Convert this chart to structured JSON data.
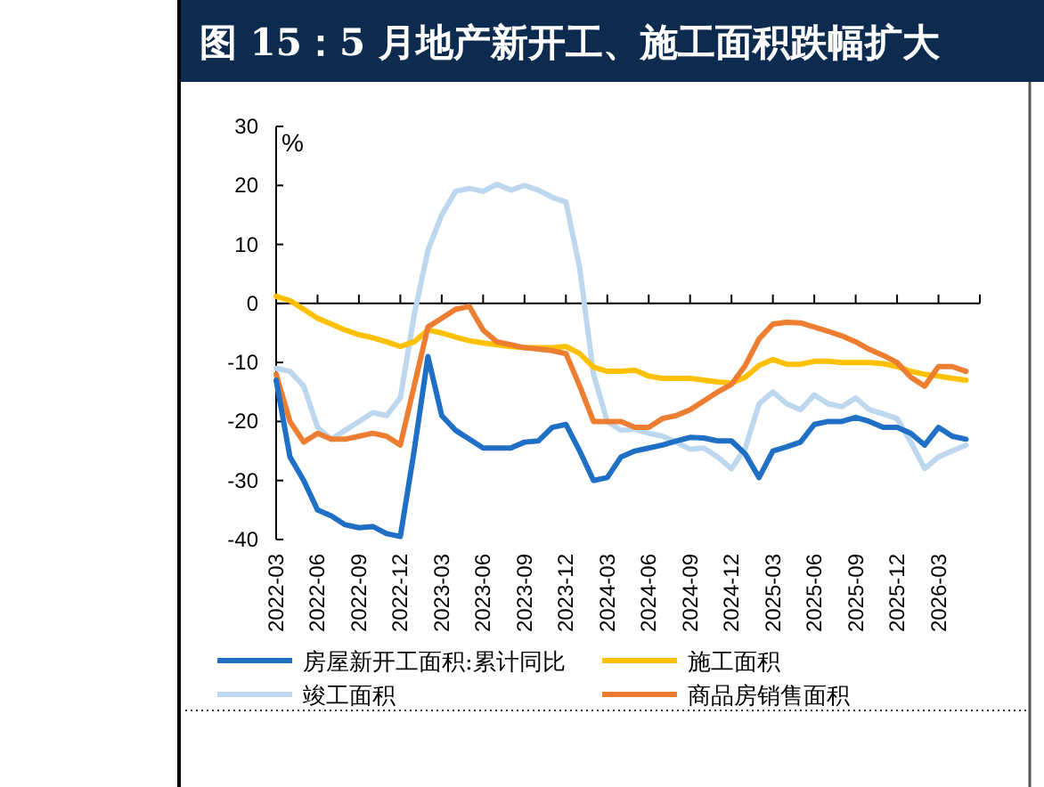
{
  "chart_data": {
    "type": "line",
    "title": "图 15：5 月地产新开工、施工面积跌幅扩大",
    "ylabel": "%",
    "x": [
      "2022-03",
      "2022-04",
      "2022-05",
      "2022-06",
      "2022-07",
      "2022-08",
      "2022-09",
      "2022-10",
      "2022-11",
      "2022-12",
      "2023-01",
      "2023-02",
      "2023-03",
      "2023-04",
      "2023-05",
      "2023-06",
      "2023-07",
      "2023-08",
      "2023-09",
      "2023-10",
      "2023-11",
      "2023-12",
      "2024-01",
      "2024-02",
      "2024-03",
      "2024-04",
      "2024-05",
      "2024-06",
      "2024-07",
      "2024-08",
      "2024-09",
      "2024-10",
      "2024-11",
      "2024-12",
      "2025-01",
      "2025-02",
      "2025-03",
      "2025-04",
      "2025-05",
      "2025-06",
      "2025-07",
      "2025-08",
      "2025-09",
      "2025-10",
      "2025-11",
      "2025-12",
      "2026-01",
      "2026-02",
      "2026-03",
      "2026-04",
      "2026-05"
    ],
    "series": [
      {
        "name": "房屋新开工面积:累计同比",
        "color": "#1f6fc5",
        "values": [
          -13,
          -26,
          -30,
          -35,
          -36,
          -37.5,
          -38,
          -37.8,
          -39,
          -39.5,
          -25,
          -9,
          -19,
          -21.5,
          -23,
          -24.5,
          -24.5,
          -24.5,
          -23.5,
          -23.3,
          -21,
          -20.5,
          -25,
          -30,
          -29.5,
          -26,
          -25,
          -24.5,
          -24,
          -23.3,
          -22.7,
          -22.8,
          -23.3,
          -23.3,
          -25.5,
          -29.5,
          -25,
          -24.3,
          -23.5,
          -20.5,
          -20,
          -20,
          -19.3,
          -20,
          -21,
          -21,
          -22,
          -24,
          -21,
          -22.5,
          -23
        ]
      },
      {
        "name": "施工面积",
        "color": "#ffc000",
        "values": [
          1.2,
          0.5,
          -1,
          -2.5,
          -3.5,
          -4.5,
          -5.3,
          -5.8,
          -6.5,
          -7.3,
          -6.5,
          -4.5,
          -5,
          -5.7,
          -6.3,
          -6.7,
          -7,
          -7.3,
          -7.5,
          -7.5,
          -7.5,
          -7.3,
          -8.5,
          -10.8,
          -11.5,
          -11.5,
          -11.3,
          -12.3,
          -12.7,
          -12.7,
          -12.7,
          -13,
          -13.3,
          -13.5,
          -12.5,
          -10.5,
          -9.5,
          -10.3,
          -10.3,
          -9.8,
          -9.8,
          -10,
          -10,
          -10,
          -10.2,
          -10.7,
          -11.5,
          -12,
          -12.3,
          -12.7,
          -13
        ]
      },
      {
        "name": "竣工面积",
        "color": "#bdd7ee",
        "values": [
          -11,
          -11.5,
          -14,
          -21,
          -23,
          -21.5,
          -20,
          -18.5,
          -19,
          -16,
          -2,
          9,
          15,
          19,
          19.5,
          19,
          20.2,
          19.2,
          20,
          19.2,
          18,
          17.2,
          6,
          -12,
          -20,
          -21.5,
          -21.3,
          -22,
          -22.5,
          -23.5,
          -24.7,
          -24.5,
          -26,
          -28,
          -24.5,
          -17,
          -15,
          -17,
          -18,
          -15.5,
          -17,
          -17.5,
          -16,
          -18,
          -18.7,
          -19.5,
          -23.5,
          -28,
          -26,
          -25,
          -24
        ]
      },
      {
        "name": "商品房销售面积",
        "color": "#ed7d31",
        "values": [
          -12,
          -20,
          -23.5,
          -22,
          -23,
          -23,
          -22.5,
          -22,
          -22.5,
          -24,
          -14,
          -4,
          -2.5,
          -1,
          -0.5,
          -4.5,
          -6.5,
          -7,
          -7.5,
          -7.7,
          -8,
          -8.5,
          -14,
          -20,
          -20,
          -20,
          -21,
          -21,
          -19.5,
          -19,
          -18,
          -16.5,
          -15,
          -13.7,
          -10.5,
          -6,
          -3.5,
          -3.2,
          -3.3,
          -4,
          -4.7,
          -5.5,
          -6.5,
          -7.8,
          -8.8,
          -10,
          -12.5,
          -14,
          -10.7,
          -10.7,
          -11.5
        ]
      }
    ],
    "xlim": [
      "2022-03",
      "2026-06"
    ],
    "xticks": [
      "2022-03",
      "2022-06",
      "2022-09",
      "2022-12",
      "2023-03",
      "2023-06",
      "2023-09",
      "2023-12",
      "2024-03",
      "2024-06",
      "2024-09",
      "2024-12",
      "2025-03",
      "2025-06",
      "2025-09",
      "2025-12",
      "2026-03"
    ],
    "ylim": [
      -40,
      30
    ],
    "yticks": [
      -40,
      -30,
      -20,
      -10,
      0,
      10,
      20,
      30
    ],
    "legend": "bottom",
    "marker": "none",
    "line_style": "solid"
  }
}
